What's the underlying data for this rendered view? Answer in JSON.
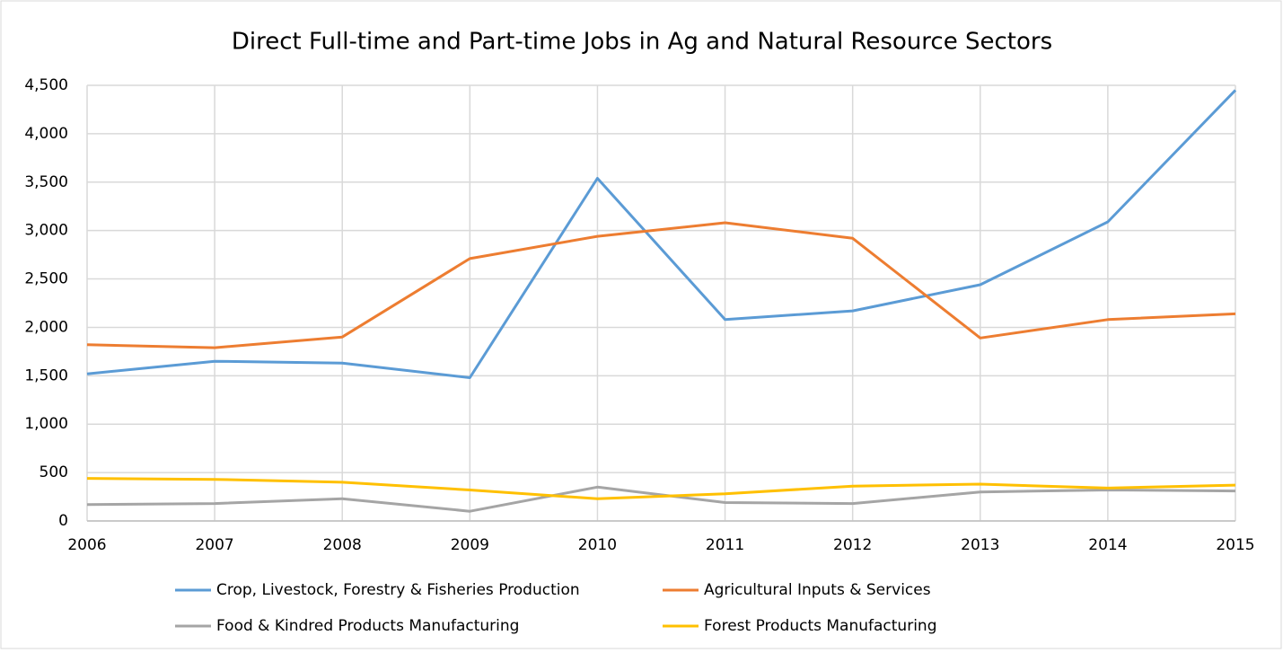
{
  "chart_data": {
    "type": "line",
    "title": "Direct Full-time and Part-time Jobs in Ag and Natural Resource Sectors",
    "x": [
      2006,
      2007,
      2008,
      2009,
      2010,
      2011,
      2012,
      2013,
      2014,
      2015
    ],
    "xlim": [
      2006,
      2015
    ],
    "xticks": [
      2006,
      2007,
      2008,
      2009,
      2010,
      2011,
      2012,
      2013,
      2014,
      2015
    ],
    "ylim": [
      0,
      4500
    ],
    "yticks": [
      0,
      500,
      {
        "value": 1000,
        "label": "1,000"
      },
      {
        "value": 1500,
        "label": "1,500"
      },
      {
        "value": 2000,
        "label": "2,000"
      },
      {
        "value": 2500,
        "label": "2,500"
      },
      {
        "value": 3000,
        "label": "3,000"
      },
      {
        "value": 3500,
        "label": "3,500"
      },
      {
        "value": 4000,
        "label": "4,000"
      },
      {
        "value": 4500,
        "label": "4,500"
      }
    ],
    "grid": true,
    "legend": "bottom",
    "series": [
      {
        "name": "Crop, Livestock, Forestry & Fisheries Production",
        "color": "#5b9bd5",
        "values": [
          1520,
          1650,
          1630,
          1480,
          3540,
          2080,
          2170,
          2440,
          3090,
          4450
        ]
      },
      {
        "name": "Agricultural Inputs & Services",
        "color": "#ed7d31",
        "values": [
          1820,
          1790,
          1900,
          2710,
          2940,
          3080,
          2920,
          1890,
          2080,
          2140
        ]
      },
      {
        "name": "Food & Kindred Products Manufacturing",
        "color": "#a5a5a5",
        "values": [
          170,
          180,
          230,
          100,
          350,
          190,
          180,
          300,
          320,
          310
        ]
      },
      {
        "name": "Forest Products Manufacturing",
        "color": "#ffc000",
        "values": [
          440,
          430,
          400,
          320,
          230,
          280,
          360,
          380,
          340,
          370
        ]
      }
    ]
  }
}
